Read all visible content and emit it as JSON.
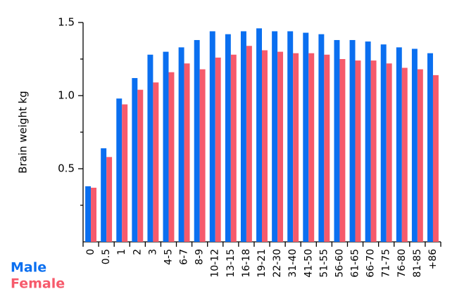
{
  "chart_data": {
    "type": "bar",
    "ylabel": "Brain weight kg",
    "categories": [
      "0",
      "0.5",
      "1",
      "2",
      "3",
      "4-5",
      "6-7",
      "8-9",
      "10-12",
      "13-15",
      "16-18",
      "19-21",
      "22-30",
      "31-40",
      "41-50",
      "51-55",
      "56-60",
      "61-65",
      "66-70",
      "71-75",
      "76-80",
      "81-85",
      "+86"
    ],
    "series": [
      {
        "name": "Male",
        "color": "#0a6ff0",
        "values": [
          0.38,
          0.64,
          0.98,
          1.12,
          1.28,
          1.3,
          1.33,
          1.38,
          1.44,
          1.42,
          1.44,
          1.46,
          1.44,
          1.44,
          1.43,
          1.42,
          1.38,
          1.38,
          1.37,
          1.35,
          1.33,
          1.32,
          1.29
        ]
      },
      {
        "name": "Female",
        "color": "#f65a6b",
        "values": [
          0.37,
          0.58,
          0.94,
          1.04,
          1.09,
          1.16,
          1.22,
          1.18,
          1.26,
          1.28,
          1.34,
          1.31,
          1.3,
          1.29,
          1.29,
          1.28,
          1.25,
          1.24,
          1.24,
          1.22,
          1.19,
          1.18,
          1.14
        ]
      }
    ],
    "ylim": [
      0,
      1.5
    ],
    "yticks": [
      0.5,
      {
        "value": 1,
        "label": "1.0"
      },
      1.5
    ],
    "yminorticks": [
      0.25,
      0.75,
      1.25
    ],
    "legend": "bottom-left"
  }
}
